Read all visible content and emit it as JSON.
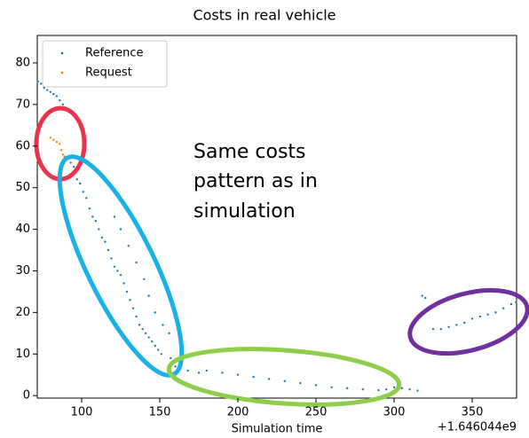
{
  "chart_data": {
    "type": "scatter",
    "title": "Costs in real vehicle",
    "xlabel": "Simulation time",
    "x_offset_label": "+1.646044e9",
    "annotations": [
      "Same costs",
      "pattern as in",
      "simulation"
    ],
    "xlim": [
      71.6,
      378.4
    ],
    "ylim": [
      -0.6,
      86.6
    ],
    "xticks": [
      100,
      150,
      200,
      250,
      300,
      350
    ],
    "yticks": [
      0,
      10,
      20,
      30,
      40,
      50,
      60,
      70,
      80
    ],
    "legend": "upper left",
    "series": [
      {
        "name": "Reference",
        "color": "#1f77b4",
        "x": [
          72,
          74,
          76,
          78,
          80,
          82,
          84,
          86,
          88,
          90,
          93,
          95,
          97,
          99,
          101,
          103,
          105,
          107,
          109,
          111,
          113,
          115,
          117,
          119,
          121,
          123,
          125,
          127,
          129,
          131,
          133,
          135,
          137,
          139,
          141,
          143,
          145,
          147,
          149,
          151,
          121,
          125,
          130,
          135,
          140,
          143,
          147,
          152,
          156,
          157,
          160,
          163,
          168,
          175,
          180,
          190,
          200,
          210,
          220,
          230,
          240,
          250,
          260,
          270,
          280,
          290,
          295,
          300,
          305,
          310,
          315,
          318,
          320,
          322,
          325,
          330,
          335,
          340,
          345,
          350,
          355,
          360,
          365,
          370,
          375,
          378
        ],
        "values": [
          75.5,
          75,
          74,
          73.5,
          73,
          72.5,
          72,
          71,
          70,
          57,
          56,
          55,
          52,
          51,
          49,
          47.5,
          45,
          43,
          42,
          40,
          38,
          37,
          35,
          33,
          31,
          30,
          29,
          27,
          25,
          23,
          21,
          19,
          17,
          16,
          15,
          14,
          13,
          12,
          11,
          10,
          43,
          40,
          36,
          32,
          28,
          24,
          20,
          17,
          15,
          9,
          7,
          6.5,
          6,
          5.5,
          6,
          5.5,
          5,
          4.5,
          4,
          3.5,
          3,
          2.5,
          2,
          1.8,
          1.5,
          1.3,
          1.5,
          2,
          1.8,
          1.5,
          1.2,
          24,
          23.5,
          21,
          16,
          16,
          16.5,
          17,
          17.5,
          18.5,
          19,
          19.5,
          20,
          21,
          22,
          22.5
        ]
      },
      {
        "name": "Request",
        "color": "#ff7f0e",
        "x": [
          80,
          82,
          84,
          86,
          87,
          88,
          89
        ],
        "values": [
          62,
          61.5,
          61,
          60.5,
          59,
          58,
          57.5
        ]
      }
    ]
  }
}
